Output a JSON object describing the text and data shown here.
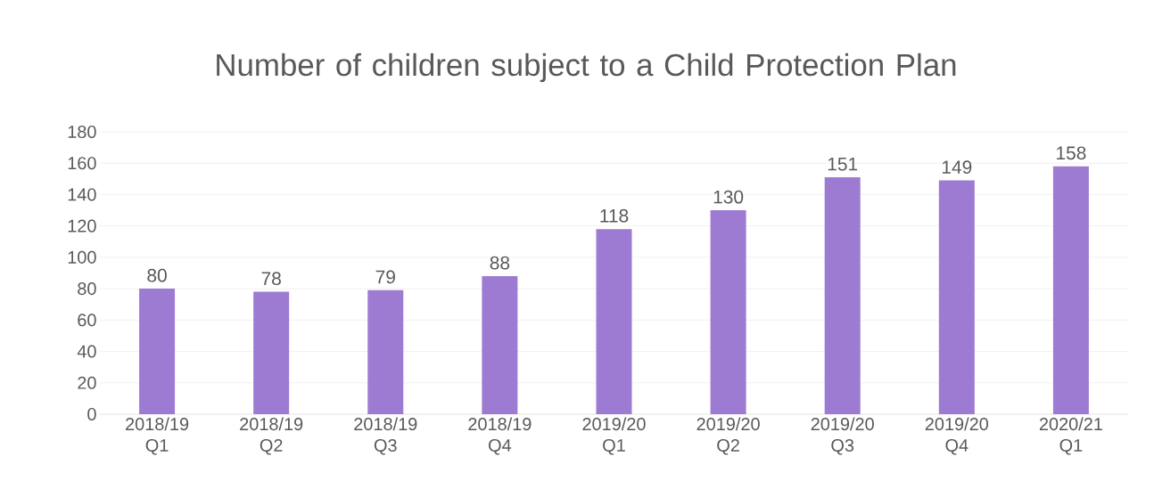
{
  "chart_data": {
    "type": "bar",
    "title": "Number of children subject to a Child Protection Plan",
    "categories": [
      "2018/19 Q1",
      "2018/19 Q2",
      "2018/19 Q3",
      "2018/19 Q4",
      "2019/20 Q1",
      "2019/20 Q2",
      "2019/20 Q3",
      "2019/20 Q4",
      "2020/21 Q1"
    ],
    "values": [
      80,
      78,
      79,
      88,
      118,
      130,
      151,
      149,
      158
    ],
    "color": "#9e7bd2",
    "ylim": [
      0,
      180
    ],
    "yticks": [
      0,
      20,
      40,
      60,
      80,
      100,
      120,
      140,
      160,
      180
    ],
    "grid": "y",
    "data_labels": true
  }
}
